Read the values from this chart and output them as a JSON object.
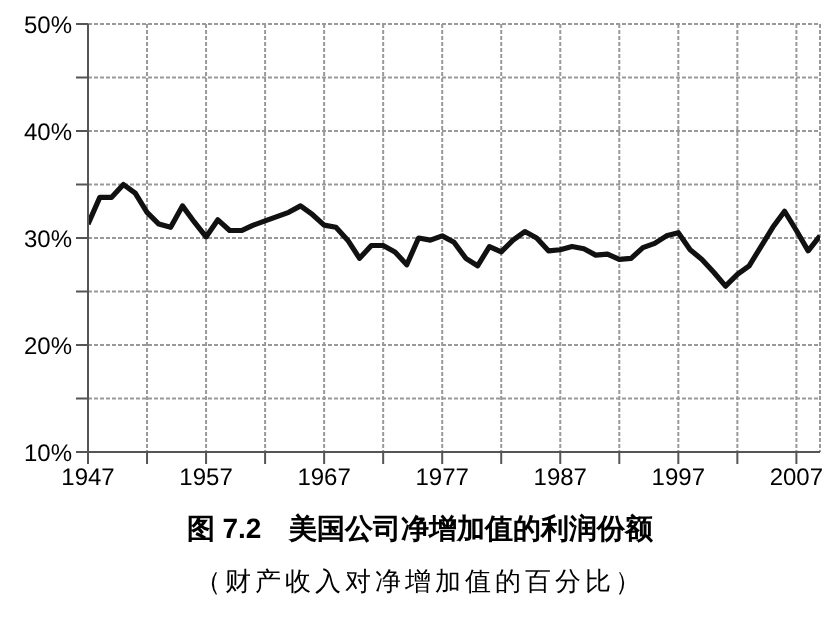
{
  "chart_data": {
    "type": "line",
    "title": "图 7.2　美国公司净增加值的利润份额",
    "subtitle": "（财产收入对净增加值的百分比）",
    "x": [
      1947,
      1948,
      1949,
      1950,
      1951,
      1952,
      1953,
      1954,
      1955,
      1956,
      1957,
      1958,
      1959,
      1960,
      1961,
      1962,
      1963,
      1964,
      1965,
      1966,
      1967,
      1968,
      1969,
      1970,
      1971,
      1972,
      1973,
      1974,
      1975,
      1976,
      1977,
      1978,
      1979,
      1980,
      1981,
      1982,
      1983,
      1984,
      1985,
      1986,
      1987,
      1988,
      1989,
      1990,
      1991,
      1992,
      1993,
      1994,
      1995,
      1996,
      1997,
      1998,
      1999,
      2000,
      2001,
      2002,
      2003,
      2004,
      2005,
      2006,
      2007,
      2008,
      2009
    ],
    "series": [
      {
        "color": "#111111",
        "values": [
          31.3,
          33.8,
          33.8,
          35.0,
          34.2,
          32.4,
          31.3,
          31.0,
          33.0,
          31.5,
          30.1,
          31.7,
          30.7,
          30.7,
          31.2,
          31.6,
          32.0,
          32.4,
          33.0,
          32.2,
          31.2,
          31.0,
          29.8,
          28.1,
          29.3,
          29.3,
          28.7,
          27.5,
          30.0,
          29.8,
          30.2,
          29.6,
          28.1,
          27.4,
          29.2,
          28.7,
          29.8,
          30.6,
          30.0,
          28.8,
          28.9,
          29.2,
          29.0,
          28.4,
          28.5,
          28.0,
          28.1,
          29.1,
          29.5,
          30.2,
          30.5,
          28.9,
          28.0,
          26.8,
          25.5,
          26.6,
          27.4,
          29.2,
          31.0,
          32.5,
          30.7,
          28.8,
          30.2
        ]
      }
    ],
    "xlim": [
      1947,
      2009
    ],
    "xticks": [
      1947,
      {
        "value": 1952,
        "label": null
      },
      1957,
      {
        "value": 1962,
        "label": null
      },
      1967,
      {
        "value": 1972,
        "label": null
      },
      1977,
      {
        "value": 1982,
        "label": null
      },
      1987,
      {
        "value": 1992,
        "label": null
      },
      1997,
      {
        "value": 2002,
        "label": null
      },
      2007
    ],
    "ylim": [
      10,
      50
    ],
    "yticks": [
      {
        "value": 10,
        "label": "10%"
      },
      {
        "value": 15,
        "label": null
      },
      {
        "value": 20,
        "label": "20%"
      },
      {
        "value": 25,
        "label": null
      },
      {
        "value": 30,
        "label": "30%"
      },
      {
        "value": 35,
        "label": null
      },
      {
        "value": 40,
        "label": "40%"
      },
      {
        "value": 45,
        "label": null
      },
      {
        "value": 50,
        "label": "50%"
      }
    ],
    "grid": true,
    "marker": "none",
    "line_style": "solid"
  }
}
